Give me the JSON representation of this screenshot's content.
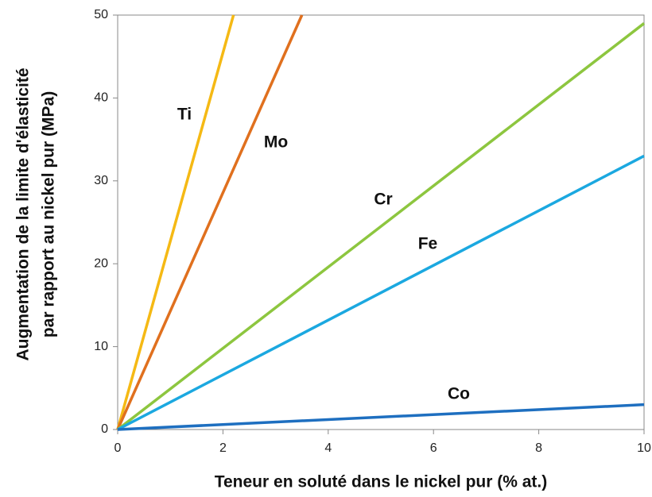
{
  "chart_data": {
    "type": "line",
    "xlabel": "Teneur en soluté dans le nickel pur (% at.)",
    "ylabel": [
      "Augmentation de la limite d'élasticité",
      "par rapport au nickel pur (MPa)"
    ],
    "xlim": [
      0,
      10
    ],
    "ylim": [
      0,
      50
    ],
    "xticks": [
      0,
      2,
      4,
      6,
      8,
      10
    ],
    "yticks": [
      0,
      10,
      20,
      30,
      40,
      50
    ],
    "grid": false,
    "series": [
      {
        "name": "Ti",
        "color": "#f5b914",
        "x": [
          0,
          2.2
        ],
        "values": [
          0,
          50
        ]
      },
      {
        "name": "Mo",
        "color": "#e0701e",
        "x": [
          0,
          3.5
        ],
        "values": [
          0,
          50
        ]
      },
      {
        "name": "Cr",
        "color": "#8dc63f",
        "x": [
          0,
          10
        ],
        "values": [
          0,
          49
        ]
      },
      {
        "name": "Fe",
        "color": "#1ba8e0",
        "x": [
          0,
          10
        ],
        "values": [
          0,
          33
        ]
      },
      {
        "name": "Co",
        "color": "#1e6fc0",
        "x": [
          0,
          10
        ],
        "values": [
          0,
          3
        ]
      }
    ]
  }
}
